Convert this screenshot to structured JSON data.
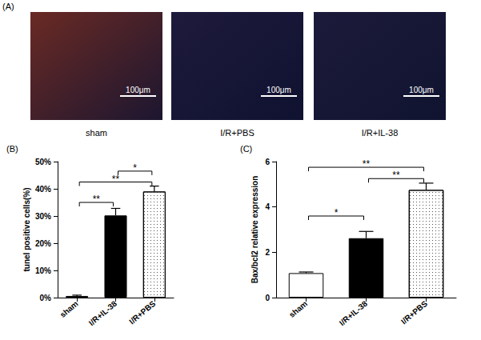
{
  "figure_panels": [
    {
      "label": "(A)",
      "images": [
        {
          "caption": "sham",
          "scale_bar": "100μm"
        },
        {
          "caption": "I/R+PBS",
          "scale_bar": "100μm"
        },
        {
          "caption": "I/R+IL-38",
          "scale_bar": "100μm"
        }
      ]
    }
  ],
  "chart_data": [
    {
      "type": "bar",
      "title": "(B)",
      "ylabel": "tunel positive cells(%)",
      "categories": [
        "sham",
        "I/R+IL-38",
        "I/R+PBS"
      ],
      "values": [
        0.6,
        30.2,
        39
      ],
      "errors": [
        0.3,
        2.6,
        2.0
      ],
      "colors": [
        "#ffffff",
        "#000000",
        "#ffffff"
      ],
      "ylim": [
        0,
        50
      ],
      "yticks": [
        {
          "value": 0,
          "label": "0%"
        },
        {
          "value": 10,
          "label": "10%"
        },
        {
          "value": 20,
          "label": "20%"
        },
        {
          "value": 30,
          "label": "30%"
        },
        {
          "value": 40,
          "label": "40%"
        },
        {
          "value": 50,
          "label": "50%"
        }
      ],
      "grid": false,
      "annotations": [
        {
          "between": [
            "sham",
            "I/R+IL-38"
          ],
          "y": 35,
          "text": "**"
        },
        {
          "between": [
            "sham",
            "I/R+PBS"
          ],
          "y": 42.5,
          "text": "**"
        },
        {
          "between": [
            "I/R+IL-38",
            "I/R+PBS"
          ],
          "y": 46.5,
          "text": "*"
        }
      ]
    },
    {
      "type": "bar",
      "title": "(C)",
      "ylabel": "Bax/bcl2 relative expression",
      "categories": [
        "sham",
        "I/R+IL-38",
        "I/R+PBS"
      ],
      "values": [
        1.08,
        2.62,
        4.75
      ],
      "errors": [
        0.05,
        0.3,
        0.3
      ],
      "colors": [
        "#ffffff",
        "#000000",
        "#ffffff"
      ],
      "ylim": [
        0,
        6
      ],
      "yticks": [
        0,
        2,
        4,
        6
      ],
      "grid": false,
      "annotations": [
        {
          "between": [
            "sham",
            "I/R+IL-38"
          ],
          "y": 3.6,
          "text": "*"
        },
        {
          "between": [
            "I/R+IL-38",
            "I/R+PBS"
          ],
          "y": 5.25,
          "text": "**"
        },
        {
          "between": [
            "sham",
            "I/R+PBS"
          ],
          "y": 5.75,
          "text": "**"
        }
      ]
    }
  ]
}
